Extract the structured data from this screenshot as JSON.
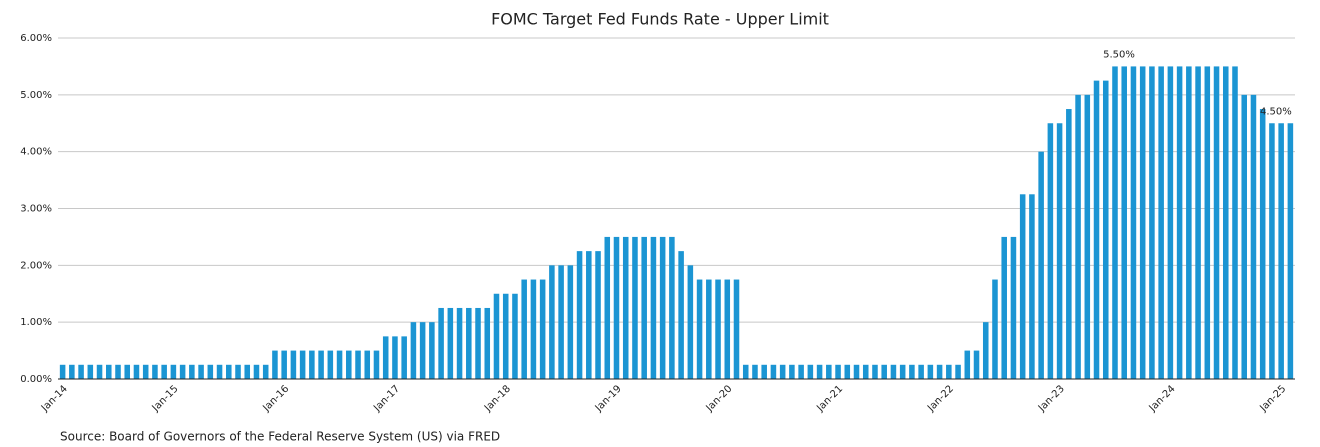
{
  "chart_data": {
    "type": "bar",
    "title": "FOMC Target Fed Funds Rate - Upper Limit",
    "source": "Source: Board of Governors of the Federal Reserve System (US) via FRED",
    "color": "#1b95d3",
    "grid": true,
    "ylim": [
      0,
      6
    ],
    "yticks": [
      {
        "value": 0,
        "label": "0.00%"
      },
      {
        "value": 1,
        "label": "1.00%"
      },
      {
        "value": 2,
        "label": "2.00%"
      },
      {
        "value": 3,
        "label": "3.00%"
      },
      {
        "value": 4,
        "label": "4.00%"
      },
      {
        "value": 5,
        "label": "5.00%"
      },
      {
        "value": 6,
        "label": "6.00%"
      }
    ],
    "categories": [
      "Jan-14",
      null,
      null,
      null,
      null,
      null,
      null,
      null,
      null,
      null,
      null,
      null,
      "Jan-15",
      null,
      null,
      null,
      null,
      null,
      null,
      null,
      null,
      null,
      null,
      null,
      "Jan-16",
      null,
      null,
      null,
      null,
      null,
      null,
      null,
      null,
      null,
      null,
      null,
      "Jan-17",
      null,
      null,
      null,
      null,
      null,
      null,
      null,
      null,
      null,
      null,
      null,
      "Jan-18",
      null,
      null,
      null,
      null,
      null,
      null,
      null,
      null,
      null,
      null,
      null,
      "Jan-19",
      null,
      null,
      null,
      null,
      null,
      null,
      null,
      null,
      null,
      null,
      null,
      "Jan-20",
      null,
      null,
      null,
      null,
      null,
      null,
      null,
      null,
      null,
      null,
      null,
      "Jan-21",
      null,
      null,
      null,
      null,
      null,
      null,
      null,
      null,
      null,
      null,
      null,
      "Jan-22",
      null,
      null,
      null,
      null,
      null,
      null,
      null,
      null,
      null,
      null,
      null,
      "Jan-23",
      null,
      null,
      null,
      null,
      null,
      null,
      null,
      null,
      null,
      null,
      null,
      "Jan-24",
      null,
      null,
      null,
      null,
      null,
      null,
      null,
      null,
      null,
      null,
      null,
      "Jan-25",
      null
    ],
    "values": [
      0.25,
      0.25,
      0.25,
      0.25,
      0.25,
      0.25,
      0.25,
      0.25,
      0.25,
      0.25,
      0.25,
      0.25,
      0.25,
      0.25,
      0.25,
      0.25,
      0.25,
      0.25,
      0.25,
      0.25,
      0.25,
      0.25,
      0.25,
      0.5,
      0.5,
      0.5,
      0.5,
      0.5,
      0.5,
      0.5,
      0.5,
      0.5,
      0.5,
      0.5,
      0.5,
      0.75,
      0.75,
      0.75,
      1.0,
      1.0,
      1.0,
      1.25,
      1.25,
      1.25,
      1.25,
      1.25,
      1.25,
      1.5,
      1.5,
      1.5,
      1.75,
      1.75,
      1.75,
      2.0,
      2.0,
      2.0,
      2.25,
      2.25,
      2.25,
      2.5,
      2.5,
      2.5,
      2.5,
      2.5,
      2.5,
      2.5,
      2.5,
      2.25,
      2.0,
      1.75,
      1.75,
      1.75,
      1.75,
      1.75,
      0.25,
      0.25,
      0.25,
      0.25,
      0.25,
      0.25,
      0.25,
      0.25,
      0.25,
      0.25,
      0.25,
      0.25,
      0.25,
      0.25,
      0.25,
      0.25,
      0.25,
      0.25,
      0.25,
      0.25,
      0.25,
      0.25,
      0.25,
      0.25,
      0.5,
      0.5,
      1.0,
      1.75,
      2.5,
      2.5,
      3.25,
      3.25,
      4.0,
      4.5,
      4.5,
      4.75,
      5.0,
      5.0,
      5.25,
      5.25,
      5.5,
      5.5,
      5.5,
      5.5,
      5.5,
      5.5,
      5.5,
      5.5,
      5.5,
      5.5,
      5.5,
      5.5,
      5.5,
      5.5,
      5.0,
      5.0,
      4.75,
      4.5,
      4.5,
      4.5
    ],
    "value_labels": [
      null,
      null,
      null,
      null,
      null,
      null,
      null,
      null,
      null,
      null,
      null,
      null,
      null,
      null,
      null,
      null,
      null,
      null,
      null,
      null,
      null,
      null,
      null,
      null,
      null,
      null,
      null,
      null,
      null,
      null,
      null,
      null,
      null,
      null,
      null,
      null,
      null,
      null,
      null,
      null,
      null,
      null,
      null,
      null,
      null,
      null,
      null,
      null,
      null,
      null,
      null,
      null,
      null,
      null,
      null,
      null,
      null,
      null,
      null,
      null,
      null,
      null,
      null,
      null,
      null,
      null,
      null,
      null,
      null,
      null,
      null,
      null,
      null,
      null,
      null,
      null,
      null,
      null,
      null,
      null,
      null,
      null,
      null,
      null,
      null,
      null,
      null,
      null,
      null,
      null,
      null,
      null,
      null,
      null,
      null,
      null,
      null,
      null,
      null,
      null,
      null,
      null,
      null,
      null,
      null,
      null,
      null,
      null,
      null,
      null,
      null,
      null,
      null,
      null,
      "5.50%",
      null,
      null,
      null,
      null,
      null,
      null,
      null,
      null,
      null,
      null,
      null,
      null,
      null,
      null,
      null,
      null,
      "4.50%",
      null,
      null
    ]
  }
}
